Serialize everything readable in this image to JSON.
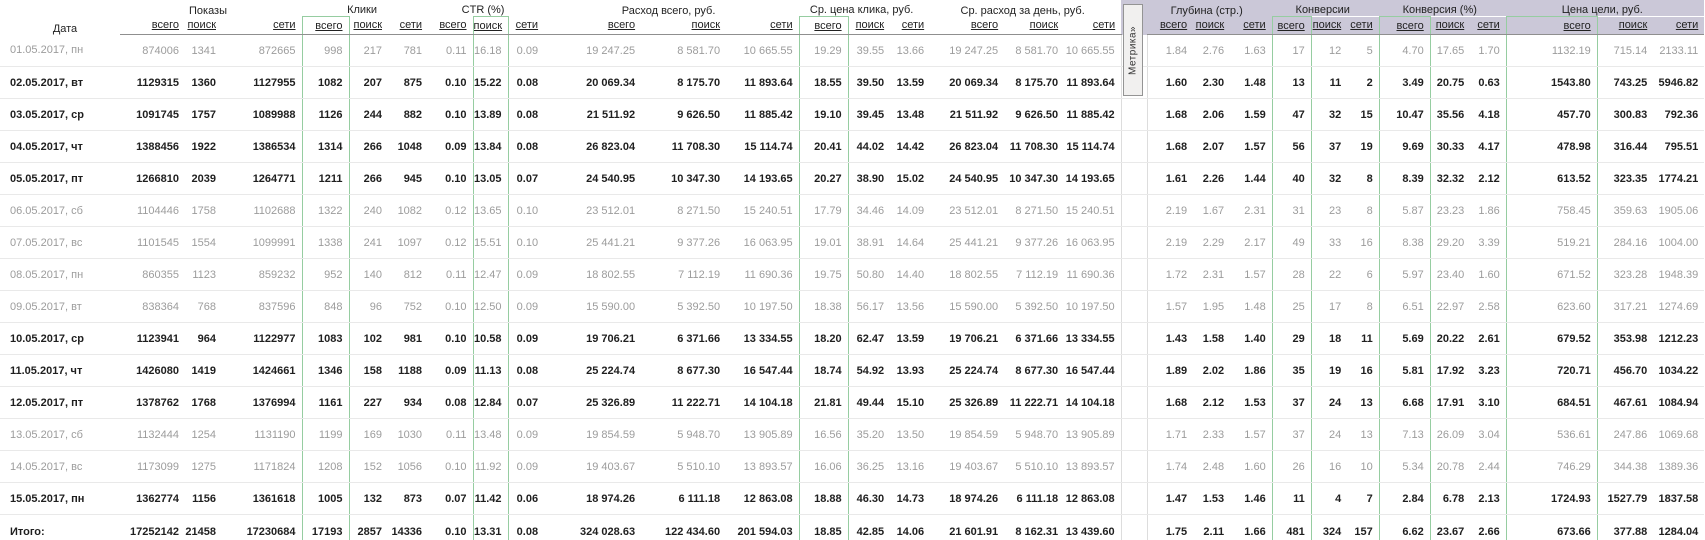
{
  "date_header": "Дата",
  "sub_labels": [
    "всего",
    "поиск",
    "сети"
  ],
  "groups": [
    {
      "label": "Показы"
    },
    {
      "label": "Клики"
    },
    {
      "label": "CTR (%)"
    },
    {
      "label": "Расход всего, руб."
    },
    {
      "label": "Ср. цена клика, руб."
    },
    {
      "label": "Ср. расход за день, руб."
    },
    {
      "label": "Глубина (стр.)"
    },
    {
      "label": "Конверсии"
    },
    {
      "label": "Конверсия (%)"
    },
    {
      "label": "Цена цели, руб."
    }
  ],
  "metrika_tab": "Метрика»",
  "colors": {
    "highlight_box_green": "#96cda1",
    "metrika_header_band": "#cbc8d8",
    "inactive_row_text": "#9c9c9c",
    "active_row_text": "#1f1f1f"
  },
  "rows": [
    {
      "date": "01.05.2017, пн",
      "style": "dim",
      "values": [
        "874006",
        "1341",
        "872665",
        "998",
        "217",
        "781",
        "0.11",
        "16.18",
        "0.09",
        "19 247.25",
        "8 581.70",
        "10 665.55",
        "19.29",
        "39.55",
        "13.66",
        "19 247.25",
        "8 581.70",
        "10 665.55",
        "1.84",
        "2.76",
        "1.63",
        "17",
        "12",
        "5",
        "4.70",
        "17.65",
        "1.70",
        "1132.19",
        "715.14",
        "2133.11"
      ]
    },
    {
      "date": "02.05.2017, вт",
      "style": "strong",
      "values": [
        "1129315",
        "1360",
        "1127955",
        "1082",
        "207",
        "875",
        "0.10",
        "15.22",
        "0.08",
        "20 069.34",
        "8 175.70",
        "11 893.64",
        "18.55",
        "39.50",
        "13.59",
        "20 069.34",
        "8 175.70",
        "11 893.64",
        "1.60",
        "2.30",
        "1.48",
        "13",
        "11",
        "2",
        "3.49",
        "20.75",
        "0.63",
        "1543.80",
        "743.25",
        "5946.82"
      ]
    },
    {
      "date": "03.05.2017, ср",
      "style": "strong",
      "values": [
        "1091745",
        "1757",
        "1089988",
        "1126",
        "244",
        "882",
        "0.10",
        "13.89",
        "0.08",
        "21 511.92",
        "9 626.50",
        "11 885.42",
        "19.10",
        "39.45",
        "13.48",
        "21 511.92",
        "9 626.50",
        "11 885.42",
        "1.68",
        "2.06",
        "1.59",
        "47",
        "32",
        "15",
        "10.47",
        "35.56",
        "4.18",
        "457.70",
        "300.83",
        "792.36"
      ]
    },
    {
      "date": "04.05.2017, чт",
      "style": "strong",
      "values": [
        "1388456",
        "1922",
        "1386534",
        "1314",
        "266",
        "1048",
        "0.09",
        "13.84",
        "0.08",
        "26 823.04",
        "11 708.30",
        "15 114.74",
        "20.41",
        "44.02",
        "14.42",
        "26 823.04",
        "11 708.30",
        "15 114.74",
        "1.68",
        "2.07",
        "1.57",
        "56",
        "37",
        "19",
        "9.69",
        "30.33",
        "4.17",
        "478.98",
        "316.44",
        "795.51"
      ]
    },
    {
      "date": "05.05.2017, пт",
      "style": "strong",
      "values": [
        "1266810",
        "2039",
        "1264771",
        "1211",
        "266",
        "945",
        "0.10",
        "13.05",
        "0.07",
        "24 540.95",
        "10 347.30",
        "14 193.65",
        "20.27",
        "38.90",
        "15.02",
        "24 540.95",
        "10 347.30",
        "14 193.65",
        "1.61",
        "2.26",
        "1.44",
        "40",
        "32",
        "8",
        "8.39",
        "32.32",
        "2.12",
        "613.52",
        "323.35",
        "1774.21"
      ]
    },
    {
      "date": "06.05.2017, сб",
      "style": "dim",
      "values": [
        "1104446",
        "1758",
        "1102688",
        "1322",
        "240",
        "1082",
        "0.12",
        "13.65",
        "0.10",
        "23 512.01",
        "8 271.50",
        "15 240.51",
        "17.79",
        "34.46",
        "14.09",
        "23 512.01",
        "8 271.50",
        "15 240.51",
        "2.19",
        "1.67",
        "2.31",
        "31",
        "23",
        "8",
        "5.87",
        "23.23",
        "1.86",
        "758.45",
        "359.63",
        "1905.06"
      ]
    },
    {
      "date": "07.05.2017, вс",
      "style": "dim",
      "values": [
        "1101545",
        "1554",
        "1099991",
        "1338",
        "241",
        "1097",
        "0.12",
        "15.51",
        "0.10",
        "25 441.21",
        "9 377.26",
        "16 063.95",
        "19.01",
        "38.91",
        "14.64",
        "25 441.21",
        "9 377.26",
        "16 063.95",
        "2.19",
        "2.29",
        "2.17",
        "49",
        "33",
        "16",
        "8.38",
        "29.20",
        "3.39",
        "519.21",
        "284.16",
        "1004.00"
      ]
    },
    {
      "date": "08.05.2017, пн",
      "style": "dim",
      "values": [
        "860355",
        "1123",
        "859232",
        "952",
        "140",
        "812",
        "0.11",
        "12.47",
        "0.09",
        "18 802.55",
        "7 112.19",
        "11 690.36",
        "19.75",
        "50.80",
        "14.40",
        "18 802.55",
        "7 112.19",
        "11 690.36",
        "1.72",
        "2.31",
        "1.57",
        "28",
        "22",
        "6",
        "5.97",
        "23.40",
        "1.60",
        "671.52",
        "323.28",
        "1948.39"
      ]
    },
    {
      "date": "09.05.2017, вт",
      "style": "dim",
      "values": [
        "838364",
        "768",
        "837596",
        "848",
        "96",
        "752",
        "0.10",
        "12.50",
        "0.09",
        "15 590.00",
        "5 392.50",
        "10 197.50",
        "18.38",
        "56.17",
        "13.56",
        "15 590.00",
        "5 392.50",
        "10 197.50",
        "1.57",
        "1.95",
        "1.48",
        "25",
        "17",
        "8",
        "6.51",
        "22.97",
        "2.58",
        "623.60",
        "317.21",
        "1274.69"
      ]
    },
    {
      "date": "10.05.2017, ср",
      "style": "strong",
      "values": [
        "1123941",
        "964",
        "1122977",
        "1083",
        "102",
        "981",
        "0.10",
        "10.58",
        "0.09",
        "19 706.21",
        "6 371.66",
        "13 334.55",
        "18.20",
        "62.47",
        "13.59",
        "19 706.21",
        "6 371.66",
        "13 334.55",
        "1.43",
        "1.58",
        "1.40",
        "29",
        "18",
        "11",
        "5.69",
        "20.22",
        "2.61",
        "679.52",
        "353.98",
        "1212.23"
      ]
    },
    {
      "date": "11.05.2017, чт",
      "style": "strong",
      "values": [
        "1426080",
        "1419",
        "1424661",
        "1346",
        "158",
        "1188",
        "0.09",
        "11.13",
        "0.08",
        "25 224.74",
        "8 677.30",
        "16 547.44",
        "18.74",
        "54.92",
        "13.93",
        "25 224.74",
        "8 677.30",
        "16 547.44",
        "1.89",
        "2.02",
        "1.86",
        "35",
        "19",
        "16",
        "5.81",
        "17.92",
        "3.23",
        "720.71",
        "456.70",
        "1034.22"
      ]
    },
    {
      "date": "12.05.2017, пт",
      "style": "strong",
      "values": [
        "1378762",
        "1768",
        "1376994",
        "1161",
        "227",
        "934",
        "0.08",
        "12.84",
        "0.07",
        "25 326.89",
        "11 222.71",
        "14 104.18",
        "21.81",
        "49.44",
        "15.10",
        "25 326.89",
        "11 222.71",
        "14 104.18",
        "1.68",
        "2.12",
        "1.53",
        "37",
        "24",
        "13",
        "6.68",
        "17.91",
        "3.10",
        "684.51",
        "467.61",
        "1084.94"
      ]
    },
    {
      "date": "13.05.2017, сб",
      "style": "dim",
      "values": [
        "1132444",
        "1254",
        "1131190",
        "1199",
        "169",
        "1030",
        "0.11",
        "13.48",
        "0.09",
        "19 854.59",
        "5 948.70",
        "13 905.89",
        "16.56",
        "35.20",
        "13.50",
        "19 854.59",
        "5 948.70",
        "13 905.89",
        "1.71",
        "2.33",
        "1.57",
        "37",
        "24",
        "13",
        "7.13",
        "26.09",
        "3.04",
        "536.61",
        "247.86",
        "1069.68"
      ]
    },
    {
      "date": "14.05.2017, вс",
      "style": "dim",
      "values": [
        "1173099",
        "1275",
        "1171824",
        "1208",
        "152",
        "1056",
        "0.10",
        "11.92",
        "0.09",
        "19 403.67",
        "5 510.10",
        "13 893.57",
        "16.06",
        "36.25",
        "13.16",
        "19 403.67",
        "5 510.10",
        "13 893.57",
        "1.74",
        "2.48",
        "1.60",
        "26",
        "16",
        "10",
        "5.34",
        "20.78",
        "2.44",
        "746.29",
        "344.38",
        "1389.36"
      ]
    },
    {
      "date": "15.05.2017, пн",
      "style": "strong",
      "values": [
        "1362774",
        "1156",
        "1361618",
        "1005",
        "132",
        "873",
        "0.07",
        "11.42",
        "0.06",
        "18 974.26",
        "6 111.18",
        "12 863.08",
        "18.88",
        "46.30",
        "14.73",
        "18 974.26",
        "6 111.18",
        "12 863.08",
        "1.47",
        "1.53",
        "1.46",
        "11",
        "4",
        "7",
        "2.84",
        "6.78",
        "2.13",
        "1724.93",
        "1527.79",
        "1837.58"
      ]
    }
  ],
  "total": {
    "label": "Итого:",
    "values": [
      "17252142",
      "21458",
      "17230684",
      "17193",
      "2857",
      "14336",
      "0.10",
      "13.31",
      "0.08",
      "324 028.63",
      "122 434.60",
      "201 594.03",
      "18.85",
      "42.85",
      "14.06",
      "21 601.91",
      "8 162.31",
      "13 439.60",
      "1.75",
      "2.11",
      "1.66",
      "481",
      "324",
      "157",
      "6.62",
      "23.67",
      "2.66",
      "673.66",
      "377.88",
      "1284.04"
    ]
  }
}
